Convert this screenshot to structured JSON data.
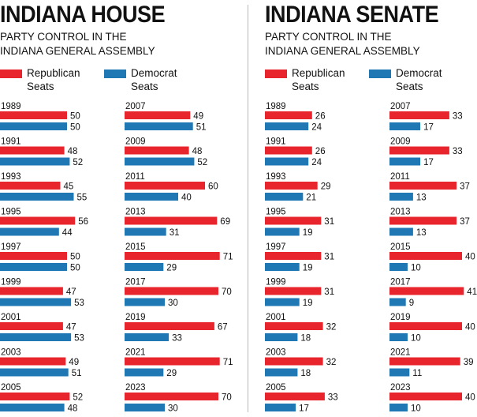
{
  "colors": {
    "republican": "#e8242c",
    "democrat": "#1f78b4"
  },
  "legend": {
    "republican": "Republican Seats",
    "democrat": "Democrat Seats"
  },
  "house": {
    "title": "INDIANA HOUSE",
    "subtitle": [
      "PARTY CONTROL IN THE",
      "INDIANA GENERAL ASSEMBLY"
    ]
  },
  "senate": {
    "title": "INDIANA SENATE",
    "subtitle": [
      "PARTY CONTROL IN THE",
      "INDIANA GENERAL ASSEMBLY"
    ]
  },
  "chart_data": [
    {
      "type": "bar",
      "title": "INDIANA HOUSE",
      "categories": [
        "1989",
        "1991",
        "1993",
        "1995",
        "1997",
        "1999",
        "2001",
        "2003",
        "2005",
        "2007",
        "2009",
        "2011",
        "2013",
        "2015",
        "2017",
        "2019",
        "2021",
        "2023"
      ],
      "series": [
        {
          "name": "Republican Seats",
          "values": [
            50,
            48,
            45,
            56,
            50,
            47,
            47,
            49,
            52,
            49,
            48,
            60,
            69,
            71,
            70,
            67,
            71,
            70
          ]
        },
        {
          "name": "Democrat Seats",
          "values": [
            50,
            52,
            55,
            44,
            50,
            53,
            53,
            51,
            48,
            51,
            52,
            40,
            31,
            29,
            30,
            33,
            29,
            30
          ]
        }
      ]
    },
    {
      "type": "bar",
      "title": "INDIANA SENATE",
      "categories": [
        "1989",
        "1991",
        "1993",
        "1995",
        "1997",
        "1999",
        "2001",
        "2003",
        "2005",
        "2007",
        "2009",
        "2011",
        "2013",
        "2015",
        "2017",
        "2019",
        "2021",
        "2023"
      ],
      "series": [
        {
          "name": "Republican Seats",
          "values": [
            26,
            26,
            29,
            31,
            31,
            31,
            32,
            32,
            33,
            33,
            33,
            37,
            37,
            40,
            41,
            40,
            39,
            40
          ]
        },
        {
          "name": "Democrat Seats",
          "values": [
            24,
            24,
            21,
            19,
            19,
            19,
            18,
            18,
            17,
            17,
            17,
            13,
            13,
            10,
            9,
            10,
            11,
            10
          ]
        }
      ]
    }
  ]
}
